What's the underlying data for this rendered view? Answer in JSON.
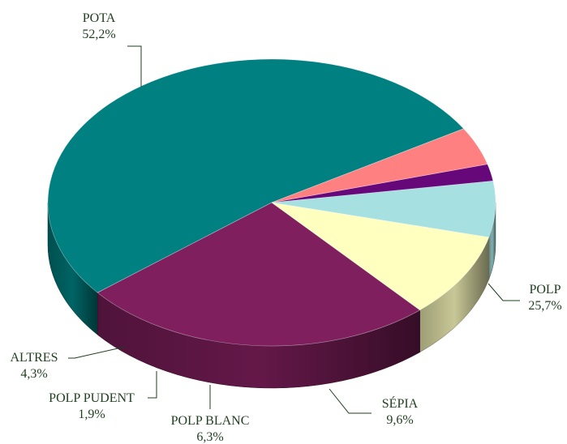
{
  "chart_data": {
    "type": "pie",
    "style": "3d",
    "title": "",
    "slices": [
      {
        "label": "POTA",
        "value": 52.2,
        "value_text": "52,2%",
        "color": "#008080"
      },
      {
        "label": "POLP",
        "value": 25.7,
        "value_text": "25,7%",
        "color": "#801f5e"
      },
      {
        "label": "SÉPIA",
        "value": 9.6,
        "value_text": "9,6%",
        "color": "#ffffc0"
      },
      {
        "label": "POLP BLANC",
        "value": 6.3,
        "value_text": "6,3%",
        "color": "#a6e0e0"
      },
      {
        "label": "POLP PUDENT",
        "value": 1.9,
        "value_text": "1,9%",
        "color": "#66087a"
      },
      {
        "label": "ALTRES",
        "value": 4.3,
        "value_text": "4,3%",
        "color": "#ff8080"
      }
    ]
  }
}
